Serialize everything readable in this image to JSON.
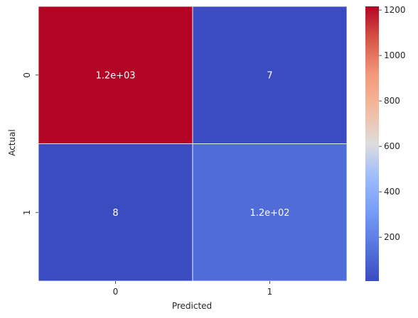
{
  "chart_data": {
    "type": "heatmap",
    "title": "",
    "xlabel": "Predicted",
    "ylabel": "Actual",
    "x_categories": [
      "0",
      "1"
    ],
    "y_categories": [
      "0",
      "1"
    ],
    "values": [
      [
        1216,
        7
      ],
      [
        8,
        124
      ]
    ],
    "annotations": [
      [
        "1.2e+03",
        "7"
      ],
      [
        "8",
        "1.2e+02"
      ]
    ],
    "colormap": "coolwarm",
    "colorbar": {
      "min": 7,
      "max": 1216,
      "ticks": [
        200,
        400,
        600,
        800,
        1000,
        1200
      ]
    }
  }
}
